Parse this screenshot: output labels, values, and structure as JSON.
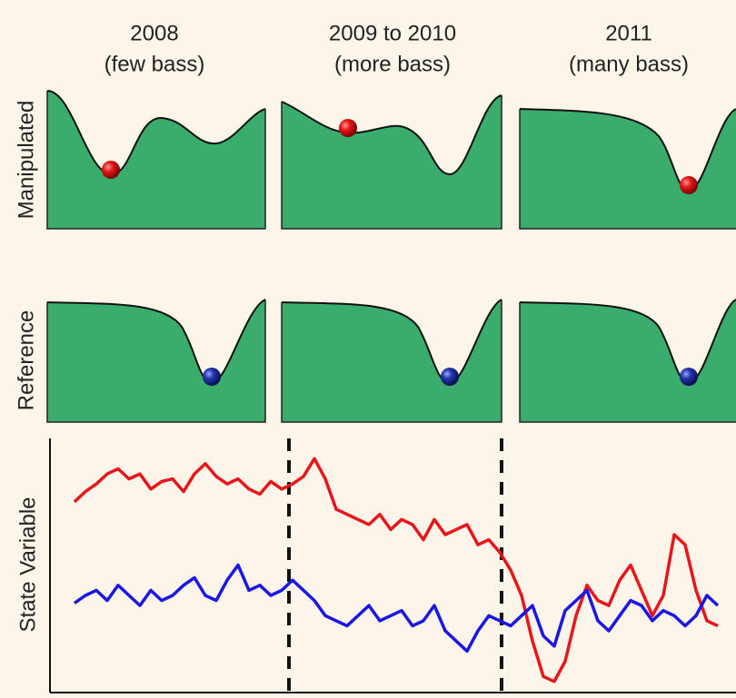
{
  "columns": [
    {
      "year": "2008",
      "note": "(few bass)"
    },
    {
      "year": "2009 to 2010",
      "note": "(more bass)"
    },
    {
      "year": "2011",
      "note": "(many bass)"
    }
  ],
  "rows": [
    "Manipulated",
    "Reference"
  ],
  "chart_data": {
    "type": "line",
    "y_label": "State Variable",
    "ylim": [
      0,
      100
    ],
    "series": [
      {
        "color": "#e8161b",
        "values": [
          75,
          79,
          82,
          86,
          88,
          84,
          86,
          80,
          83,
          84,
          79,
          86,
          90,
          85,
          82,
          84,
          80,
          78,
          83,
          80,
          82,
          85,
          92,
          84,
          72,
          70,
          68,
          66,
          70,
          64,
          68,
          66,
          60,
          68,
          62,
          64,
          66,
          58,
          60,
          55,
          48,
          38,
          20,
          6,
          4,
          12,
          30,
          42,
          36,
          34,
          44,
          50,
          40,
          30,
          38,
          62,
          58,
          40,
          28,
          26
        ]
      },
      {
        "color": "#1a16e6",
        "values": [
          35,
          38,
          40,
          36,
          42,
          38,
          34,
          40,
          36,
          38,
          42,
          45,
          38,
          36,
          44,
          50,
          40,
          42,
          38,
          40,
          44,
          40,
          36,
          30,
          28,
          26,
          30,
          34,
          28,
          30,
          32,
          26,
          28,
          34,
          24,
          20,
          16,
          24,
          30,
          28,
          26,
          30,
          34,
          22,
          18,
          32,
          36,
          40,
          28,
          24,
          30,
          36,
          34,
          28,
          32,
          30,
          26,
          30,
          38,
          34
        ]
      }
    ]
  }
}
